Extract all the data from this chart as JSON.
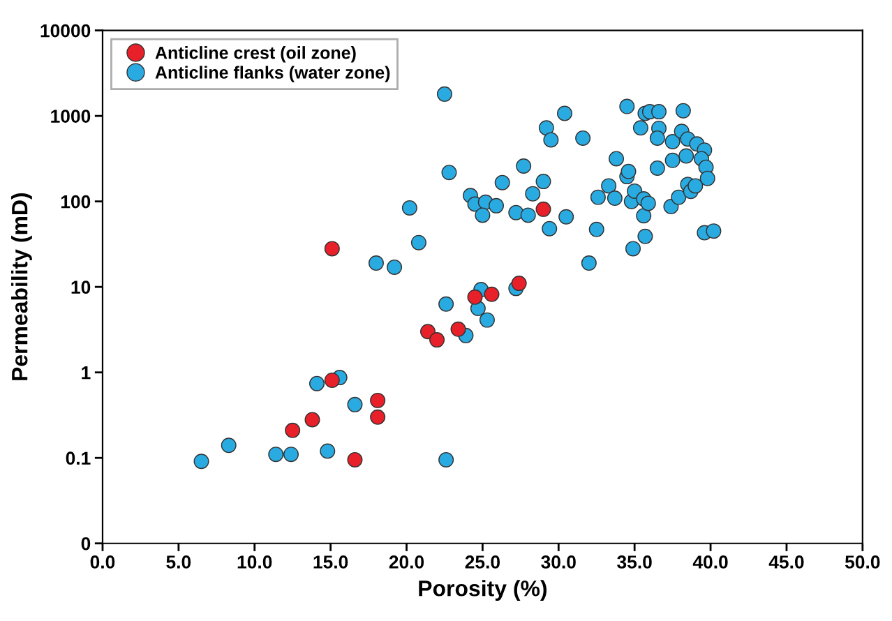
{
  "chart_data": {
    "type": "scatter",
    "xlabel": "Porosity (%)",
    "ylabel": "Permeability (mD)",
    "log": "y",
    "xlim": [
      0,
      50
    ],
    "xticks": [
      {
        "value": 0,
        "label": "0.0"
      },
      {
        "value": 5,
        "label": "5.0"
      },
      {
        "value": 10,
        "label": "10.0"
      },
      {
        "value": 15,
        "label": "15.0"
      },
      {
        "value": 20,
        "label": "20.0"
      },
      {
        "value": 25,
        "label": "25.0"
      },
      {
        "value": 30,
        "label": "30.0"
      },
      {
        "value": 35,
        "label": "35.0"
      },
      {
        "value": 40,
        "label": "40.0"
      },
      {
        "value": 45,
        "label": "45.0"
      },
      {
        "value": 50,
        "label": "50.0"
      }
    ],
    "ylim": [
      0.01,
      10000
    ],
    "yticks": [
      {
        "value": 0.01,
        "label": "0"
      },
      0.1,
      1,
      10,
      100,
      1000,
      10000
    ],
    "legend": "top left",
    "marker": "circle",
    "grid": false,
    "series": [
      {
        "name": "Anticline crest (oil zone)",
        "color": "#e8202a",
        "x": [
          15.1,
          29.0,
          27.4,
          24.5,
          25.6,
          23.4,
          21.4,
          22.0,
          15.1,
          13.8,
          12.5,
          18.1,
          18.1,
          16.6
        ],
        "values": [
          28,
          81,
          11,
          7.6,
          8.2,
          3.2,
          3.0,
          2.4,
          0.81,
          0.28,
          0.21,
          0.47,
          0.3,
          0.095
        ]
      },
      {
        "name": "Anticline flanks (water zone)",
        "color": "#29abe2",
        "x": [
          6.5,
          8.3,
          11.4,
          12.4,
          14.8,
          14.1,
          15.6,
          16.6,
          22.6,
          18.0,
          19.2,
          20.8,
          20.2,
          22.6,
          24.9,
          24.7,
          25.3,
          23.9,
          27.2,
          22.5,
          22.8,
          24.2,
          24.5,
          25.2,
          25.0,
          25.9,
          26.3,
          27.7,
          27.2,
          28.0,
          28.3,
          29.0,
          29.4,
          29.2,
          29.5,
          30.4,
          30.5,
          31.6,
          32.0,
          32.5,
          32.6,
          33.3,
          33.7,
          33.8,
          34.5,
          34.5,
          34.6,
          34.8,
          35.0,
          34.9,
          35.4,
          35.6,
          35.7,
          35.6,
          35.9,
          35.7,
          36.0,
          36.6,
          36.6,
          36.5,
          36.5,
          37.5,
          37.5,
          37.4,
          37.9,
          38.2,
          38.1,
          38.5,
          38.4,
          38.5,
          38.7,
          39.0,
          39.1,
          39.6,
          39.4,
          39.7,
          39.8,
          39.6,
          40.2
        ],
        "values": [
          0.091,
          0.14,
          0.11,
          0.11,
          0.12,
          0.74,
          0.87,
          0.42,
          0.095,
          19,
          17,
          33,
          84,
          6.3,
          9.3,
          5.6,
          4.1,
          2.7,
          9.6,
          1800,
          218,
          117,
          93,
          98,
          69,
          89,
          166,
          259,
          74,
          69,
          123,
          171,
          48,
          724,
          525,
          1070,
          66,
          550,
          19,
          47,
          112,
          152,
          109,
          316,
          1290,
          195,
          224,
          100,
          132,
          28,
          724,
          68,
          39,
          107,
          95,
          1070,
          1120,
          1120,
          716,
          550,
          245,
          500,
          302,
          87,
          112,
          1150,
          660,
          537,
          340,
          158,
          131,
          152,
          470,
          398,
          316,
          251,
          186,
          43,
          45
        ]
      }
    ]
  }
}
